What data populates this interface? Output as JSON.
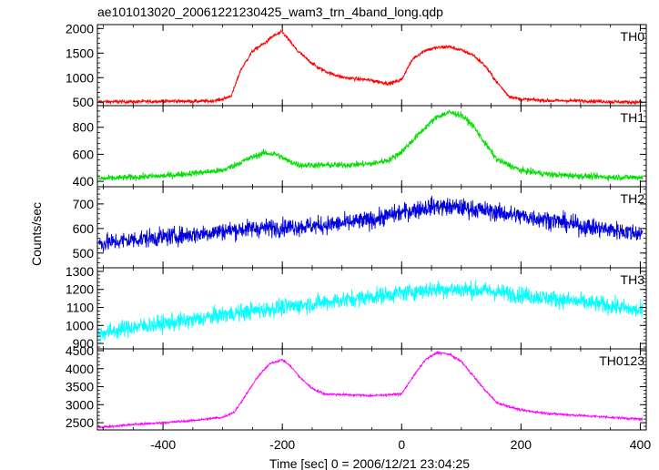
{
  "chart_data": {
    "type": "line",
    "title": "ae101013020_20061221230425_wam3_trn_4band_long.qdp",
    "xlabel": "Time [sec] 0 = 2006/12/21 23:04:25",
    "ylabel": "Counts/sec",
    "xlim": [
      -510,
      410
    ],
    "xticks": [
      -400,
      -200,
      0,
      200,
      400
    ],
    "grid": false,
    "panels": [
      {
        "name": "TH0",
        "color": "#ff0000",
        "ylim": [
          430,
          2080
        ],
        "yticks": [
          500,
          1000,
          1500,
          2000
        ],
        "noise": 35,
        "x": [
          -500,
          -450,
          -400,
          -350,
          -320,
          -300,
          -285,
          -270,
          -250,
          -230,
          -215,
          -200,
          -190,
          -175,
          -160,
          -140,
          -120,
          -100,
          -80,
          -60,
          -40,
          -20,
          0,
          10,
          20,
          40,
          60,
          80,
          100,
          120,
          140,
          160,
          180,
          200,
          250,
          300,
          350,
          400
        ],
        "values": [
          510,
          510,
          520,
          520,
          520,
          560,
          640,
          1150,
          1540,
          1700,
          1850,
          1930,
          1780,
          1550,
          1390,
          1200,
          1090,
          1010,
          980,
          960,
          920,
          880,
          960,
          1200,
          1400,
          1560,
          1610,
          1630,
          1560,
          1460,
          1240,
          900,
          620,
          560,
          530,
          530,
          510,
          500
        ]
      },
      {
        "name": "TH1",
        "color": "#00e000",
        "ylim": [
          360,
          960
        ],
        "yticks": [
          400,
          600,
          800
        ],
        "noise": 22,
        "x": [
          -500,
          -450,
          -400,
          -350,
          -300,
          -270,
          -250,
          -230,
          -210,
          -190,
          -170,
          -150,
          -100,
          -50,
          -20,
          0,
          20,
          40,
          60,
          80,
          100,
          120,
          140,
          160,
          200,
          250,
          300,
          350,
          400
        ],
        "values": [
          420,
          430,
          440,
          460,
          480,
          540,
          580,
          610,
          600,
          550,
          520,
          520,
          520,
          530,
          560,
          620,
          710,
          800,
          880,
          910,
          890,
          810,
          680,
          560,
          480,
          450,
          440,
          430,
          430
        ]
      },
      {
        "name": "TH2",
        "color": "#0000e0",
        "ylim": [
          440,
          770
        ],
        "yticks": [
          500,
          600,
          700
        ],
        "noise": 35,
        "x": [
          -500,
          -450,
          -400,
          -350,
          -300,
          -250,
          -200,
          -150,
          -100,
          -50,
          0,
          50,
          100,
          150,
          200,
          250,
          300,
          350,
          400
        ],
        "values": [
          540,
          555,
          565,
          575,
          590,
          600,
          605,
          610,
          620,
          635,
          665,
          690,
          685,
          670,
          650,
          635,
          610,
          595,
          580
        ]
      },
      {
        "name": "TH3",
        "color": "#00ffff",
        "ylim": [
          870,
          1320
        ],
        "yticks": [
          900,
          1000,
          1100,
          1200,
          1300
        ],
        "noise": 45,
        "x": [
          -500,
          -450,
          -400,
          -350,
          -300,
          -250,
          -200,
          -150,
          -100,
          -50,
          0,
          50,
          100,
          150,
          200,
          250,
          300,
          350,
          400
        ],
        "values": [
          960,
          990,
          1010,
          1030,
          1060,
          1080,
          1100,
          1120,
          1140,
          1160,
          1180,
          1200,
          1200,
          1190,
          1170,
          1150,
          1130,
          1110,
          1080
        ]
      },
      {
        "name": "TH0123",
        "color": "#ff00ff",
        "ylim": [
          2300,
          4550
        ],
        "yticks": [
          2500,
          3000,
          3500,
          4000,
          4500
        ],
        "noise": 30,
        "x": [
          -500,
          -450,
          -400,
          -350,
          -300,
          -280,
          -260,
          -240,
          -220,
          -200,
          -185,
          -170,
          -150,
          -130,
          -100,
          -50,
          0,
          20,
          40,
          60,
          80,
          100,
          120,
          140,
          160,
          200,
          250,
          300,
          350,
          400
        ],
        "values": [
          2380,
          2450,
          2500,
          2560,
          2650,
          2800,
          3300,
          3800,
          4150,
          4250,
          4050,
          3750,
          3450,
          3300,
          3280,
          3250,
          3300,
          3800,
          4250,
          4450,
          4400,
          4200,
          3800,
          3400,
          3050,
          2850,
          2750,
          2700,
          2650,
          2600
        ]
      }
    ]
  }
}
